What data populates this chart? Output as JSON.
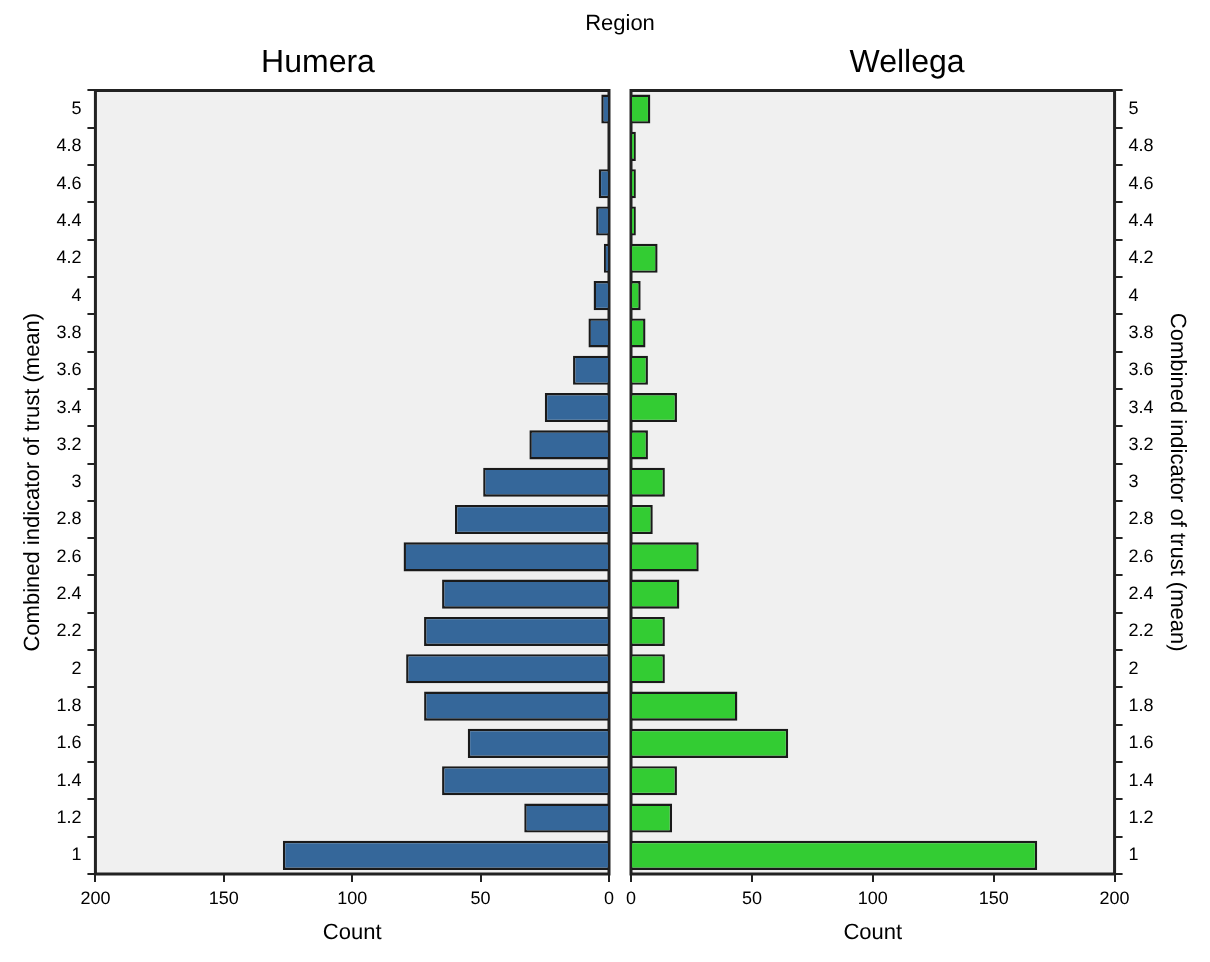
{
  "chart_data": [
    {
      "type": "bar",
      "orientation": "horizontal",
      "title": "Humera",
      "xlabel": "Count",
      "ylabel": "Combined indicator of trust (mean)",
      "annotations": [
        "Region"
      ],
      "categories": [
        "5",
        "4.8",
        "4.6",
        "4.4",
        "4.2",
        "4",
        "3.8",
        "3.6",
        "3.4",
        "3.2",
        "3",
        "2.8",
        "2.6",
        "2.4",
        "2.2",
        "2",
        "1.8",
        "1.6",
        "1.4",
        "1.2",
        "1"
      ],
      "values": [
        3,
        0,
        4,
        5,
        2,
        6,
        8,
        14,
        25,
        31,
        49,
        60,
        80,
        65,
        72,
        79,
        72,
        55,
        65,
        33,
        127
      ],
      "color": "#35679a",
      "xlim": [
        200,
        0
      ],
      "xticks": [
        200,
        150,
        100,
        50,
        0
      ]
    },
    {
      "type": "bar",
      "orientation": "horizontal",
      "title": "Wellega",
      "xlabel": "Count",
      "ylabel": "Combined indicator of trust (mean)",
      "categories": [
        "5",
        "4.8",
        "4.6",
        "4.4",
        "4.2",
        "4",
        "3.8",
        "3.6",
        "3.4",
        "3.2",
        "3",
        "2.8",
        "2.6",
        "2.4",
        "2.2",
        "2",
        "1.8",
        "1.6",
        "1.4",
        "1.2",
        "1"
      ],
      "values": [
        8,
        2,
        2,
        2,
        11,
        4,
        6,
        7,
        19,
        7,
        14,
        9,
        28,
        20,
        14,
        14,
        44,
        65,
        19,
        17,
        168
      ],
      "color": "#33cc33",
      "xlim": [
        0,
        200
      ],
      "xticks": [
        0,
        50,
        100,
        150,
        200
      ]
    }
  ]
}
